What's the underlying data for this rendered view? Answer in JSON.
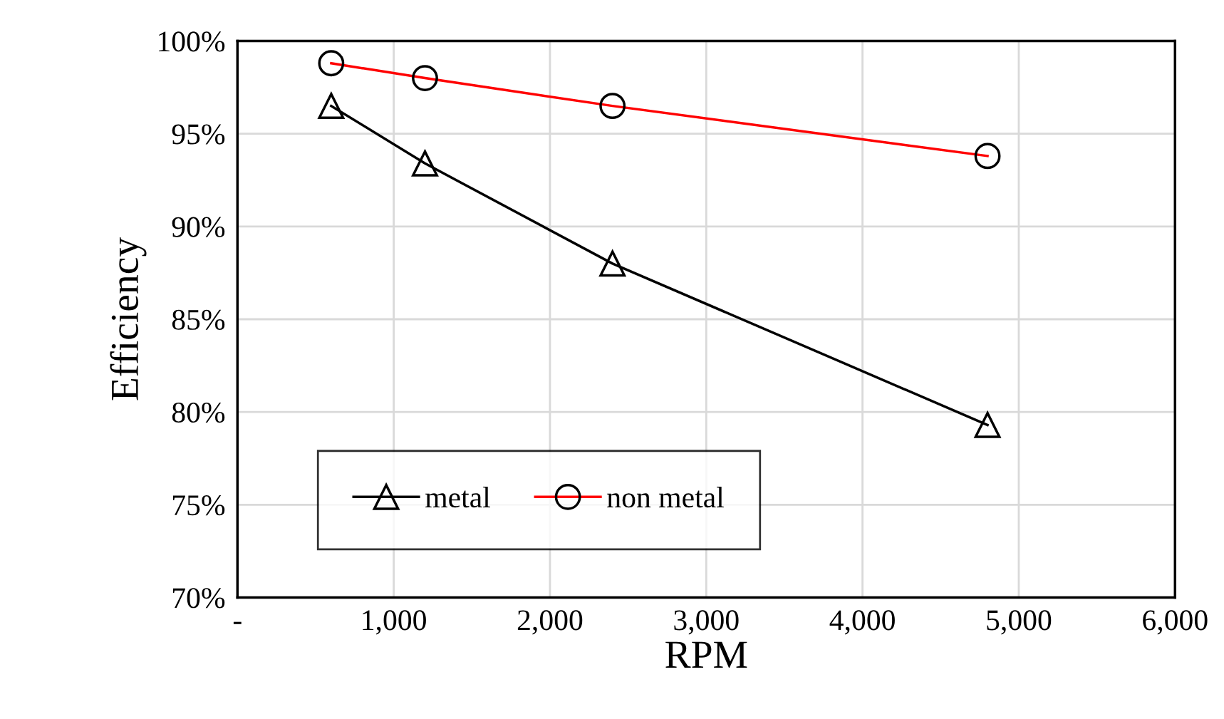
{
  "chart_data": {
    "type": "line",
    "xlabel": "RPM",
    "ylabel": "Efficiency",
    "xlim": [
      0,
      6000
    ],
    "xticks": [
      {
        "value": 0,
        "label": "-"
      },
      {
        "value": 1000,
        "label": "1,000"
      },
      {
        "value": 2000,
        "label": "2,000"
      },
      {
        "value": 3000,
        "label": "3,000"
      },
      {
        "value": 4000,
        "label": "4,000"
      },
      {
        "value": 5000,
        "label": "5,000"
      },
      {
        "value": 6000,
        "label": "6,000"
      }
    ],
    "ylim": [
      70,
      100
    ],
    "yticks": [
      {
        "value": 70,
        "label": "70%"
      },
      {
        "value": 75,
        "label": "75%"
      },
      {
        "value": 80,
        "label": "80%"
      },
      {
        "value": 85,
        "label": "85%"
      },
      {
        "value": 90,
        "label": "90%"
      },
      {
        "value": 95,
        "label": "95%"
      },
      {
        "value": 100,
        "label": "100%"
      }
    ],
    "grid": true,
    "legend": "bottom left",
    "line_style": "solid",
    "x": [
      600,
      1200,
      2400,
      4800
    ],
    "series": [
      {
        "name": "metal",
        "color": "#000000",
        "marker": "triangle",
        "values": [
          96.5,
          93.4,
          88.0,
          79.3
        ]
      },
      {
        "name": "non metal",
        "color": "#ff0000",
        "marker": "circle",
        "values": [
          98.8,
          98.0,
          96.5,
          93.8
        ]
      }
    ]
  }
}
